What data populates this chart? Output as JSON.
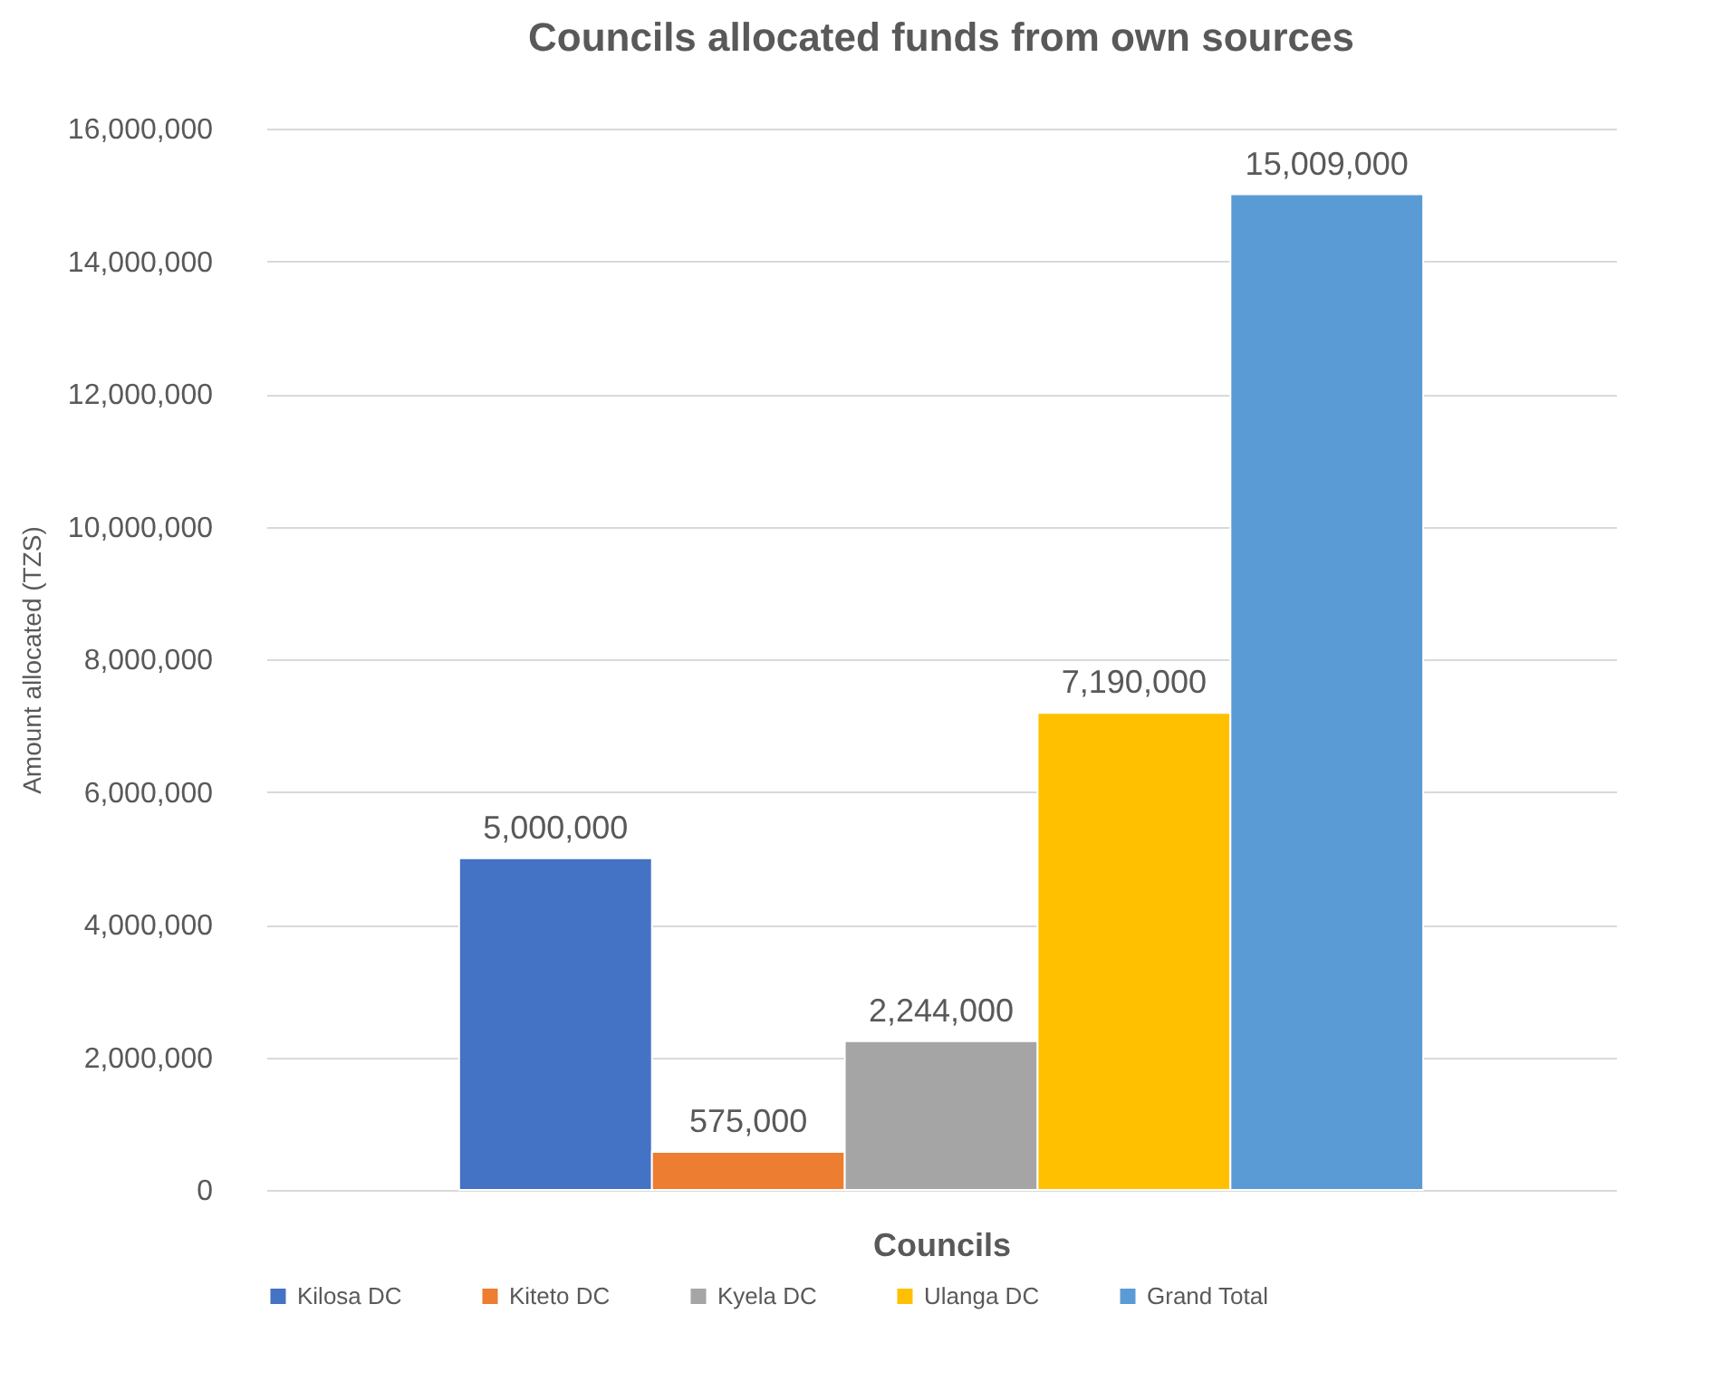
{
  "chart_data": {
    "type": "bar",
    "title": "Councils allocated funds from own sources",
    "xlabel": "Councils",
    "ylabel": "Amount allocated (TZS)",
    "categories": [
      null
    ],
    "series": [
      {
        "name": "Kilosa DC",
        "color": "#4472c4",
        "values": [
          5000000
        ],
        "value_labels": [
          "5,000,000"
        ]
      },
      {
        "name": "Kiteto DC",
        "color": "#ed7d31",
        "values": [
          575000
        ],
        "value_labels": [
          "575,000"
        ]
      },
      {
        "name": "Kyela DC",
        "color": "#a5a5a5",
        "values": [
          2244000
        ],
        "value_labels": [
          "2,244,000"
        ]
      },
      {
        "name": "Ulanga DC",
        "color": "#ffc000",
        "values": [
          7190000
        ],
        "value_labels": [
          "7,190,000"
        ]
      },
      {
        "name": "Grand Total",
        "color": "#5b9bd5",
        "values": [
          15009000
        ],
        "value_labels": [
          "15,009,000"
        ]
      }
    ],
    "ylim": [
      0,
      16000000
    ],
    "yticks": [
      0,
      {
        "value": 2000000,
        "label": "2,000,000"
      },
      {
        "value": 4000000,
        "label": "4,000,000"
      },
      {
        "value": 6000000,
        "label": "6,000,000"
      },
      {
        "value": 8000000,
        "label": "8,000,000"
      },
      {
        "value": 10000000,
        "label": "10,000,000"
      },
      {
        "value": 12000000,
        "label": "12,000,000"
      },
      {
        "value": 14000000,
        "label": "14,000,000"
      },
      {
        "value": 16000000,
        "label": "16,000,000"
      }
    ],
    "grid": "y",
    "legend": "bottom"
  }
}
